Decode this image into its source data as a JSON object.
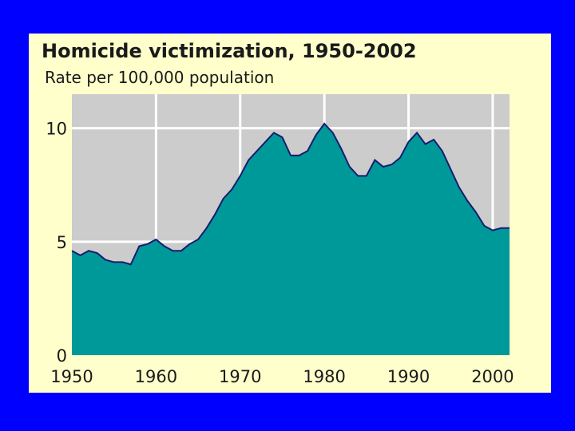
{
  "chart_data": {
    "type": "area",
    "title": "Homicide victimization, 1950-2002",
    "subtitle": "Rate per 100,000 population",
    "xlabel": "",
    "ylabel": "",
    "xlim": [
      1950,
      2002
    ],
    "ylim": [
      0,
      11.5
    ],
    "x_ticks": [
      1950,
      1960,
      1970,
      1980,
      1990,
      2000
    ],
    "y_ticks": [
      0,
      5,
      10
    ],
    "grid": true,
    "colors": {
      "fill": "#009999",
      "line": "#1a1a6e",
      "plot_bg": "#cccccc",
      "grid": "#ffffff",
      "panel_bg": "#ffffcc",
      "slide_bg": "#0000ff"
    },
    "series": [
      {
        "x": [
          1950,
          1951,
          1952,
          1953,
          1954,
          1955,
          1956,
          1957,
          1958,
          1959,
          1960,
          1961,
          1962,
          1963,
          1964,
          1965,
          1966,
          1967,
          1968,
          1969,
          1970,
          1971,
          1972,
          1973,
          1974,
          1975,
          1976,
          1977,
          1978,
          1979,
          1980,
          1981,
          1982,
          1983,
          1984,
          1985,
          1986,
          1987,
          1988,
          1989,
          1990,
          1991,
          1992,
          1993,
          1994,
          1995,
          1996,
          1997,
          1998,
          1999,
          2000,
          2001,
          2002
        ],
        "values": [
          4.6,
          4.4,
          4.6,
          4.5,
          4.2,
          4.1,
          4.1,
          4.0,
          4.8,
          4.9,
          5.1,
          4.8,
          4.6,
          4.6,
          4.9,
          5.1,
          5.6,
          6.2,
          6.9,
          7.3,
          7.9,
          8.6,
          9.0,
          9.4,
          9.8,
          9.6,
          8.8,
          8.8,
          9.0,
          9.7,
          10.2,
          9.8,
          9.1,
          8.3,
          7.9,
          7.9,
          8.6,
          8.3,
          8.4,
          8.7,
          9.4,
          9.8,
          9.3,
          9.5,
          9.0,
          8.2,
          7.4,
          6.8,
          6.3,
          5.7,
          5.5,
          5.6,
          5.6
        ]
      }
    ]
  }
}
